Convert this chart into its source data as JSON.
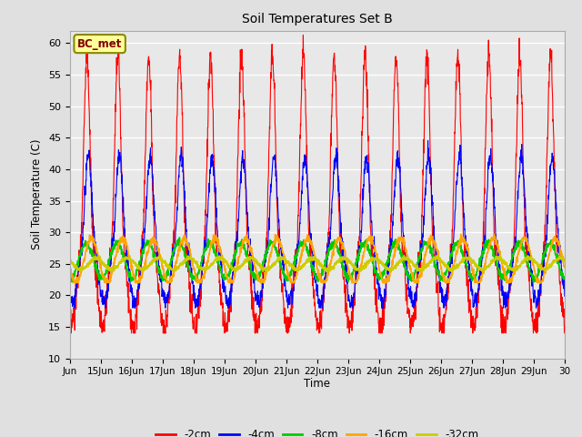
{
  "title": "Soil Temperatures Set B",
  "xlabel": "Time",
  "ylabel": "Soil Temperature (C)",
  "annotation": "BC_met",
  "ylim": [
    10,
    62
  ],
  "yticks": [
    10,
    15,
    20,
    25,
    30,
    35,
    40,
    45,
    50,
    55,
    60
  ],
  "xtick_labels": [
    "Jun",
    "15Jun",
    "16Jun",
    "17Jun",
    "18Jun",
    "19Jun",
    "20Jun",
    "21Jun",
    "22Jun",
    "23Jun",
    "24Jun",
    "25Jun",
    "26Jun",
    "27Jun",
    "28Jun",
    "29Jun",
    "30"
  ],
  "series_colors": {
    "-2cm": "#ff0000",
    "-4cm": "#0000ff",
    "-8cm": "#00cc00",
    "-16cm": "#ffa500",
    "-32cm": "#cccc00"
  },
  "series_labels": [
    "-2cm",
    "-4cm",
    "-8cm",
    "-16cm",
    "-32cm"
  ],
  "bg_color": "#e0e0e0",
  "plot_bg_color": "#e8e8e8",
  "grid_color": "#ffffff",
  "annotation_box_color": "#ffff99",
  "annotation_text_color": "#800000"
}
